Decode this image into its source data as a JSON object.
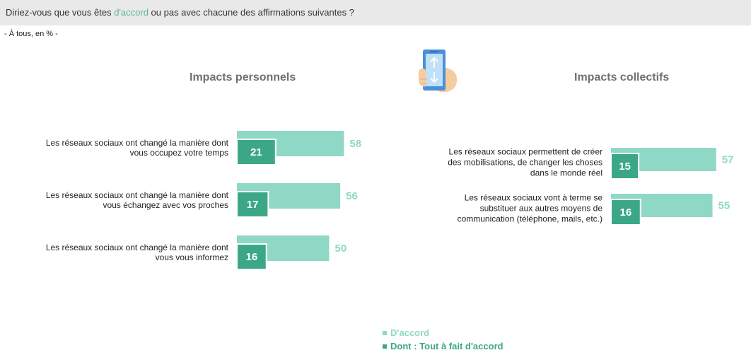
{
  "header": {
    "question_before": "Diriez-vous que vous êtes ",
    "question_accent": "d'accord",
    "question_after": " ou pas avec chacune des affirmations suivantes ?",
    "subtitle": "- À tous, en % -"
  },
  "icon": "smartphone-scroll-icon",
  "colors": {
    "accord": "#8fd8c6",
    "tout_a_fait": "#3ca786",
    "header_bg": "#e9e9e9",
    "accent_text": "#5cb896"
  },
  "chart_data": [
    {
      "type": "bar",
      "orientation": "horizontal",
      "title": "Impacts personnels",
      "categories": [
        [
          "Les réseaux sociaux ont changé la manière dont",
          "vous occupez votre temps"
        ],
        [
          "Les réseaux sociaux ont changé la manière dont",
          "vous échangez avec vos proches"
        ],
        [
          "Les réseaux sociaux ont changé la manière dont",
          "vous vous informez"
        ]
      ],
      "series": [
        {
          "name": "D'accord",
          "values": [
            58,
            56,
            50
          ]
        },
        {
          "name": "Dont : Tout à fait d'accord",
          "values": [
            21,
            17,
            16
          ]
        }
      ]
    },
    {
      "type": "bar",
      "orientation": "horizontal",
      "title": "Impacts collectifs",
      "categories": [
        [
          "Les réseaux sociaux permettent de créer",
          "des mobilisations, de changer les choses",
          "dans le monde réel"
        ],
        [
          "Les réseaux sociaux vont à terme se",
          "substituer aux autres moyens de",
          "communication (téléphone, mails, etc.)"
        ]
      ],
      "series": [
        {
          "name": "D'accord",
          "values": [
            57,
            55
          ]
        },
        {
          "name": "Dont : Tout à fait d'accord",
          "values": [
            15,
            16
          ]
        }
      ]
    }
  ],
  "legend": {
    "accord": "D'accord",
    "tout_a_fait": "Dont : Tout à fait d'accord"
  }
}
